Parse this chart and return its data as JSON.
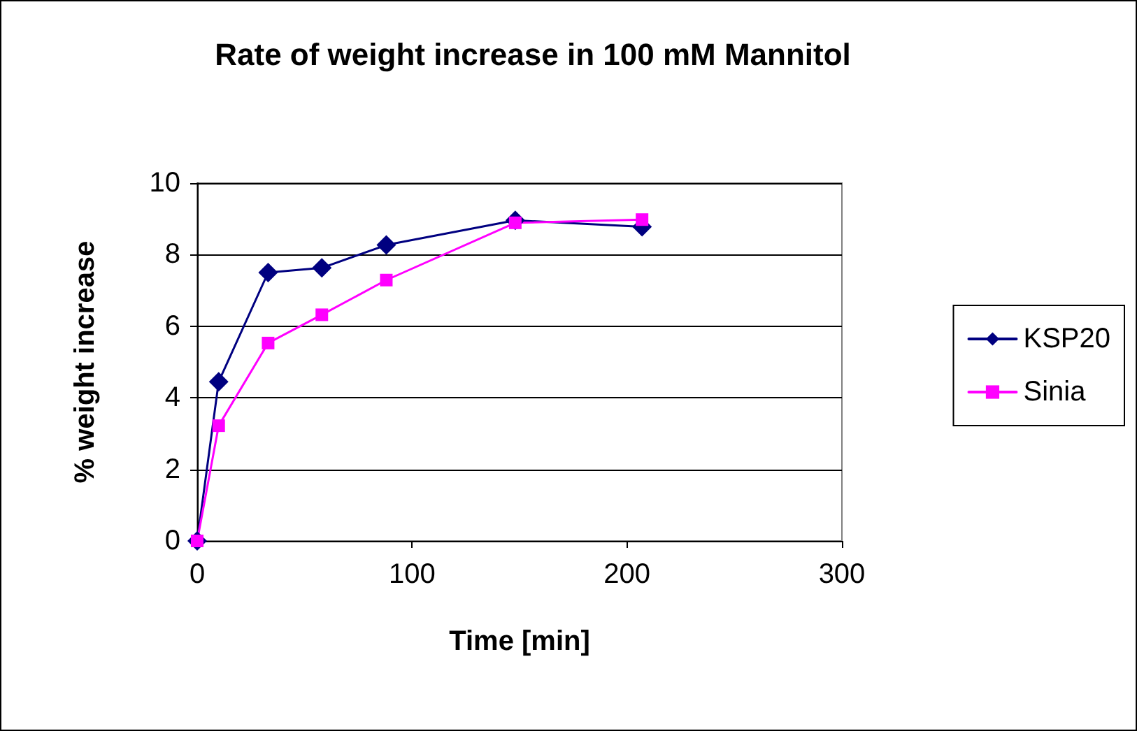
{
  "chart_data": {
    "type": "line",
    "title": "Rate of weight increase in 100 mM Mannitol",
    "xlabel": "Time [min]",
    "ylabel": "% weight increase",
    "x": [
      0,
      10,
      33,
      58,
      88,
      148,
      207
    ],
    "series": [
      {
        "name": "KSP20",
        "color": "#000080",
        "marker": "diamond",
        "values": [
          0,
          4.45,
          7.5,
          7.63,
          8.27,
          8.96,
          8.78
        ]
      },
      {
        "name": "Sinia",
        "color": "#ff00ff",
        "marker": "square",
        "values": [
          0,
          3.22,
          5.53,
          6.32,
          7.29,
          8.89,
          8.98
        ]
      }
    ],
    "xlim": [
      0,
      300
    ],
    "xticks": [
      0,
      100,
      200,
      300
    ],
    "ylim": [
      0,
      10
    ],
    "yticks": [
      0,
      2,
      4,
      6,
      8,
      10
    ],
    "grid": "y",
    "legend": "right",
    "line_style": "solid"
  }
}
